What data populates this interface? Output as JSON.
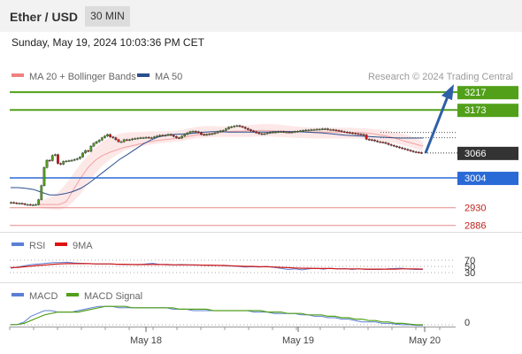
{
  "header": {
    "title": "Ether / USD",
    "timeframe": "30 MIN"
  },
  "datetime": "Sunday, May 19, 2024 10:03:36 PM CET",
  "legend": {
    "ma": "MA 20 + Bollinger Bands",
    "ma50": "MA 50",
    "rsi": "RSI",
    "rsi_ma": "9MA",
    "macd": "MACD",
    "macd_signal": "MACD Signal"
  },
  "watermark": "Research © 2024 Trading Central",
  "colors": {
    "bull": "#52a01a",
    "bear": "#e01010",
    "level": "#2a6ad6",
    "support": "#e98a8a",
    "ma50": "#2a4f8e",
    "bb": "#f6b3b3"
  },
  "chart_data": {
    "type": "candlestick",
    "ylim": [
      2870,
      3235
    ],
    "x_ticks": [
      "May 18",
      "May 19",
      "May 20"
    ],
    "levels": [
      {
        "value": 3217,
        "label": "3217",
        "kind": "resistance"
      },
      {
        "value": 3173,
        "label": "3173",
        "kind": "resistance"
      },
      {
        "value": 3066,
        "label": "3066",
        "kind": "last"
      },
      {
        "value": 3004,
        "label": "3004",
        "kind": "pivot"
      },
      {
        "value": 2930,
        "label": "2930",
        "kind": "support"
      },
      {
        "value": 2886,
        "label": "2886",
        "kind": "support"
      }
    ],
    "close": [
      2943,
      2942,
      2941,
      2941,
      2940,
      2938,
      2938,
      2937,
      2937,
      2938,
      2950,
      2985,
      3030,
      3048,
      3047,
      3060,
      3062,
      3040,
      3038,
      3045,
      3046,
      3047,
      3048,
      3050,
      3052,
      3056,
      3066,
      3072,
      3070,
      3083,
      3090,
      3094,
      3098,
      3104,
      3108,
      3112,
      3106,
      3104,
      3099,
      3094,
      3094,
      3099,
      3098,
      3099,
      3101,
      3102,
      3103,
      3104,
      3104,
      3105,
      3104,
      3104,
      3106,
      3108,
      3110,
      3109,
      3110,
      3112,
      3110,
      3107,
      3104,
      3103,
      3108,
      3112,
      3116,
      3119,
      3120,
      3119,
      3117,
      3112,
      3111,
      3112,
      3113,
      3114,
      3116,
      3119,
      3121,
      3122,
      3126,
      3130,
      3131,
      3133,
      3134,
      3132,
      3130,
      3127,
      3124,
      3121,
      3119,
      3116,
      3114,
      3113,
      3114,
      3116,
      3117,
      3118,
      3118,
      3119,
      3119,
      3118,
      3118,
      3117,
      3118,
      3119,
      3120,
      3121,
      3122,
      3123,
      3123,
      3124,
      3124,
      3125,
      3125,
      3126,
      3126,
      3124,
      3124,
      3123,
      3122,
      3121,
      3119,
      3118,
      3117,
      3116,
      3115,
      3114,
      3113,
      3112,
      3111,
      3100,
      3099,
      3098,
      3096,
      3094,
      3093,
      3092,
      3090,
      3087,
      3085,
      3083,
      3081,
      3079,
      3077,
      3075,
      3073,
      3071,
      3069,
      3068,
      3067,
      3066
    ],
    "upper_band": [
      2945,
      2950,
      2958,
      2970,
      2990,
      3015,
      3040,
      3060,
      3080,
      3095,
      3105,
      3112,
      3116,
      3118,
      3118,
      3119,
      3120,
      3120,
      3120,
      3121,
      3124,
      3128,
      3131,
      3133,
      3133,
      3132,
      3132,
      3133,
      3134,
      3135,
      3137,
      3138,
      3138,
      3137,
      3135,
      3133,
      3131,
      3130,
      3129,
      3129,
      3129,
      3129,
      3129,
      3129,
      3128,
      3127,
      3126,
      3124,
      3122,
      3118,
      3114,
      3110,
      3103,
      3095
    ],
    "lower_band": [
      2930,
      2928,
      2926,
      2925,
      2930,
      2945,
      2965,
      2990,
      3015,
      3035,
      3050,
      3062,
      3072,
      3078,
      3082,
      3085,
      3088,
      3090,
      3092,
      3094,
      3096,
      3100,
      3103,
      3104,
      3105,
      3106,
      3106,
      3106,
      3106,
      3106,
      3107,
      3107,
      3107,
      3106,
      3105,
      3104,
      3103,
      3103,
      3102,
      3102,
      3102,
      3102,
      3102,
      3102,
      3102,
      3101,
      3099,
      3097,
      3094,
      3090,
      3087,
      3082,
      3076,
      3070
    ],
    "ma20": [
      2938,
      2938,
      2938,
      2938,
      2945,
      2975,
      3005,
      3030,
      3048,
      3060,
      3068,
      3074,
      3080,
      3084,
      3088,
      3092,
      3096,
      3098,
      3100,
      3102,
      3104,
      3108,
      3111,
      3113,
      3115,
      3117,
      3119,
      3120,
      3120,
      3121,
      3121,
      3121,
      3121,
      3120,
      3120,
      3119,
      3119,
      3119,
      3118,
      3118,
      3118,
      3118,
      3118,
      3117,
      3117,
      3116,
      3114,
      3111,
      3108,
      3104,
      3098,
      3093,
      3088,
      3083
    ],
    "ma50": [
      2980,
      2980,
      2978,
      2975,
      2968,
      2962,
      2962,
      2965,
      2970,
      2978,
      2990,
      3005,
      3020,
      3035,
      3050,
      3062,
      3075,
      3088,
      3098,
      3106,
      3110,
      3112,
      3113,
      3114,
      3116,
      3118,
      3119,
      3119,
      3118,
      3118,
      3118,
      3118,
      3118,
      3118,
      3119,
      3119,
      3119,
      3119,
      3118,
      3117,
      3116,
      3114,
      3112,
      3110,
      3109,
      3108,
      3107,
      3106,
      3105,
      3104,
      3103,
      3103,
      3103,
      3103
    ],
    "rsi": [
      44,
      48,
      52,
      56,
      58,
      60,
      62,
      62,
      63,
      61,
      60,
      59,
      58,
      58,
      58,
      57,
      56,
      56,
      55,
      58,
      60,
      56,
      55,
      55,
      56,
      55,
      54,
      54,
      53,
      53,
      52,
      51,
      50,
      48,
      49,
      48,
      50,
      47,
      44,
      40,
      42,
      39,
      42,
      44,
      41,
      44,
      42,
      43,
      40,
      42,
      40,
      40,
      40,
      42,
      43,
      44,
      41,
      40,
      40
    ],
    "rsi_ma": [
      46,
      47,
      49,
      51,
      53,
      55,
      57,
      58,
      59,
      59,
      59,
      59,
      58,
      58,
      58,
      57,
      57,
      56,
      56,
      56,
      56,
      56,
      56,
      55,
      55,
      55,
      55,
      54,
      54,
      53,
      53,
      52,
      51,
      50,
      50,
      49,
      49,
      48,
      47,
      46,
      45,
      44,
      44,
      43,
      43,
      43,
      42,
      42,
      42,
      42,
      41,
      41,
      41,
      41,
      41,
      42,
      42,
      42,
      41
    ],
    "macd": [
      0.1,
      0.2,
      2,
      6,
      8,
      10,
      10,
      9,
      9,
      9,
      10,
      11,
      12,
      13,
      13,
      13,
      12,
      12,
      12,
      12,
      12,
      12,
      12,
      12,
      11,
      11,
      11,
      10,
      10,
      10,
      10,
      10,
      10,
      10,
      10,
      10,
      9,
      9,
      9,
      8,
      8,
      8,
      8,
      7,
      7,
      6,
      6,
      5,
      5,
      4,
      4,
      3,
      2,
      2,
      2,
      1,
      1,
      0.5,
      0,
      0,
      -0.5,
      -0.5
    ],
    "macd_signal": [
      0.1,
      0.2,
      1,
      3,
      5,
      7,
      8,
      9,
      9,
      9,
      9,
      10,
      11,
      12,
      13,
      13,
      13,
      13,
      12,
      12,
      12,
      12,
      12,
      12,
      12,
      11,
      11,
      11,
      11,
      11,
      10,
      10,
      10,
      10,
      10,
      10,
      10,
      10,
      9,
      9,
      9,
      8,
      8,
      8,
      7,
      7,
      7,
      6,
      6,
      5,
      5,
      4,
      4,
      3,
      3,
      2,
      2,
      1,
      1,
      0.5,
      0,
      0
    ]
  }
}
